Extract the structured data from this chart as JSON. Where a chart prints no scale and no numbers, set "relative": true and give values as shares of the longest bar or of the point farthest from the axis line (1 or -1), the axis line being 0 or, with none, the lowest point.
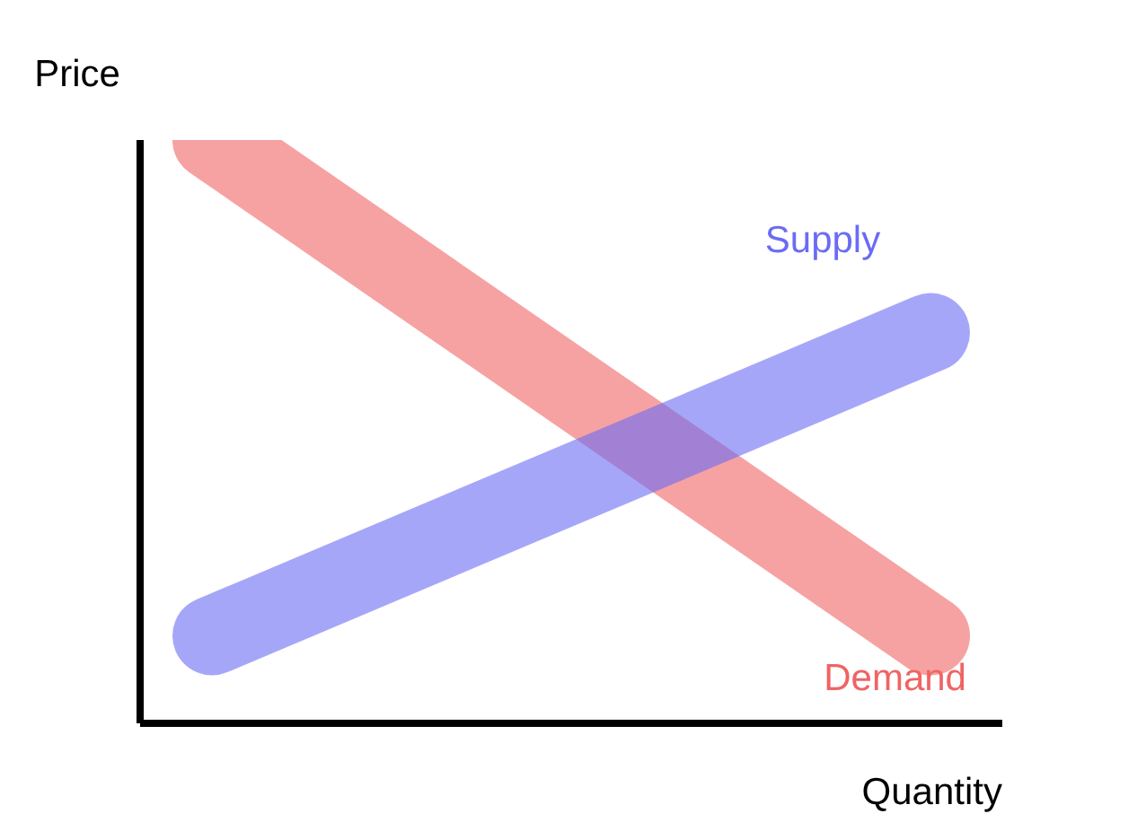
{
  "chart_data": {
    "type": "line",
    "relative": true,
    "xlabel": "Quantity",
    "ylabel": "Price",
    "categories": [
      null,
      null
    ],
    "series": [
      {
        "name": "Demand",
        "color": "#f06464",
        "values": [
          1,
          0.15
        ]
      },
      {
        "name": "Supply",
        "color": "#6b6bf5",
        "values": [
          0.15,
          0.67
        ]
      }
    ],
    "legend": false,
    "grid": false,
    "marker": "none",
    "line_style": "solid"
  }
}
